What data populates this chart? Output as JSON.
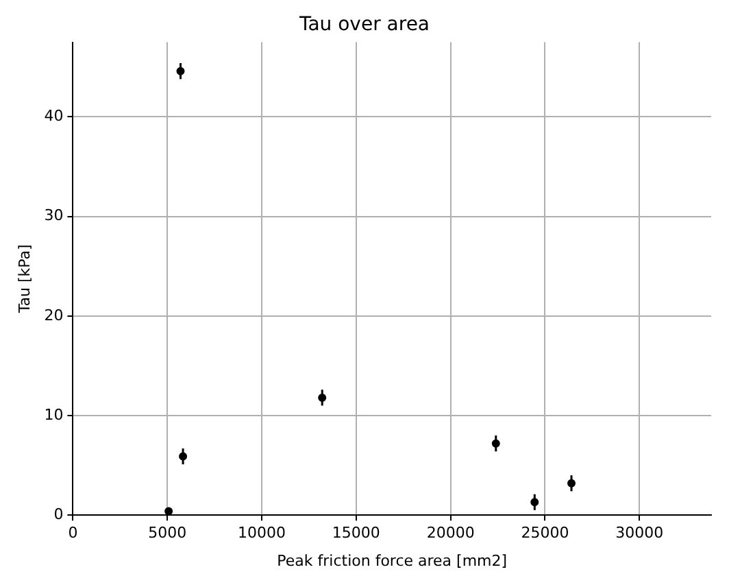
{
  "chart_data": {
    "type": "scatter",
    "title": "Tau over area",
    "xlabel": "Peak friction force area [mm2]",
    "ylabel": "Tau [kPa]",
    "x": [
      5700,
      5830,
      5070,
      13200,
      22400,
      24450,
      26400
    ],
    "values": [
      44.6,
      5.9,
      0.4,
      11.8,
      7.2,
      1.3,
      3.2
    ],
    "errors": [
      0.8,
      0.8,
      null,
      0.8,
      0.8,
      0.8,
      0.8
    ],
    "color": "#000000",
    "marker": "circle",
    "xlim": [
      0,
      33800
    ],
    "ylim": [
      0,
      47.5
    ],
    "xticks": [
      0,
      5000,
      10000,
      15000,
      20000,
      25000,
      30000
    ],
    "yticks": [
      0,
      10,
      20,
      30,
      40
    ],
    "grid": true
  }
}
